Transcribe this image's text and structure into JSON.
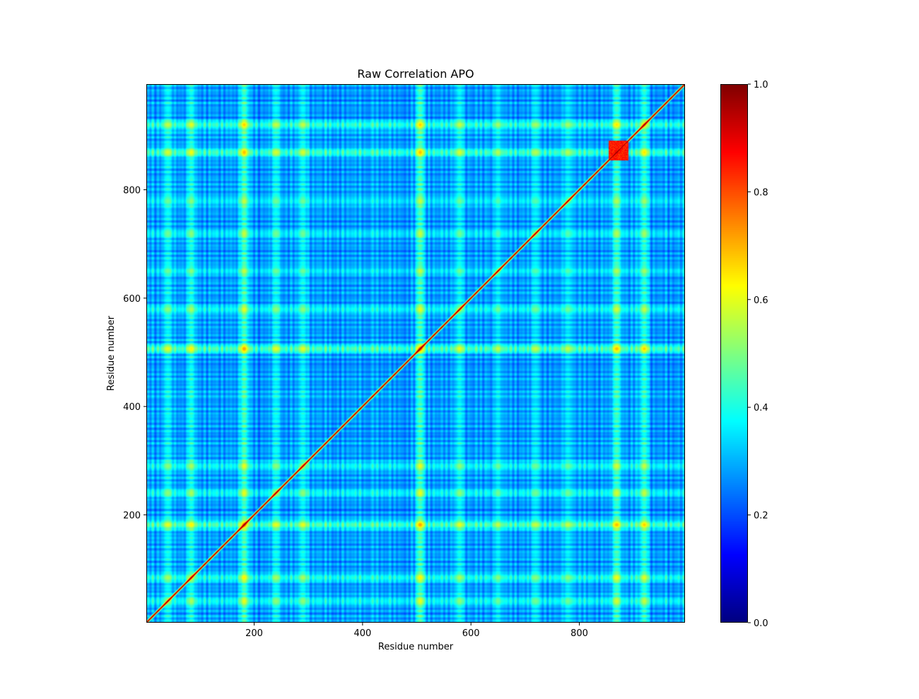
{
  "chart_data": {
    "type": "heatmap",
    "title": "Raw Correlation APO",
    "xlabel": "Residue number",
    "ylabel": "Residue number",
    "xlim": [
      1,
      995
    ],
    "ylim": [
      1,
      995
    ],
    "x_ticks": [
      200,
      400,
      600,
      800
    ],
    "y_ticks": [
      200,
      400,
      600,
      800
    ],
    "colormap": "jet",
    "colorbar": {
      "vmin": 0.0,
      "vmax": 1.0,
      "ticks": [
        0.0,
        0.2,
        0.4,
        0.6,
        0.8,
        1.0
      ],
      "tick_labels": [
        "0.0",
        "0.2",
        "0.4",
        "0.6",
        "0.8",
        "1.0"
      ]
    },
    "diagonal_value": 1.0,
    "background_correlation": 0.18,
    "high_correlation_bands": [
      {
        "residue": 181,
        "peak": 0.62
      },
      {
        "residue": 507,
        "peak": 0.62
      },
      {
        "residue": 870,
        "peak": 0.58
      },
      {
        "residue": 920,
        "peak": 0.55
      },
      {
        "residue": 83,
        "peak": 0.5
      },
      {
        "residue": 240,
        "peak": 0.45
      },
      {
        "residue": 290,
        "peak": 0.45
      },
      {
        "residue": 580,
        "peak": 0.45
      },
      {
        "residue": 650,
        "peak": 0.4
      },
      {
        "residue": 720,
        "peak": 0.4
      },
      {
        "residue": 780,
        "peak": 0.4
      },
      {
        "residue": 40,
        "peak": 0.45
      }
    ],
    "high_correlation_blocks": [
      {
        "residue_range": [
          855,
          890
        ],
        "value": 0.9
      }
    ]
  }
}
